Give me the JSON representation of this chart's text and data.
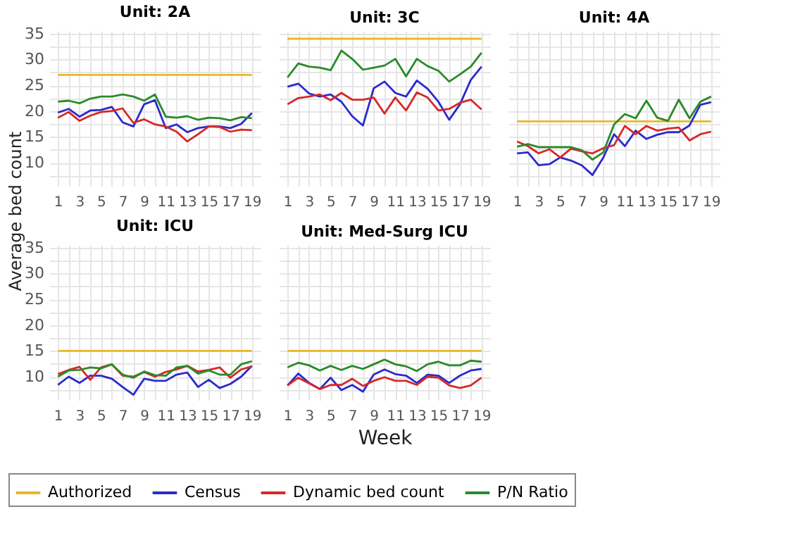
{
  "chart_data": [
    {
      "type": "line",
      "title": "Unit: 2A",
      "ylabel": "Average bed count",
      "legend": "bottom",
      "grid": true,
      "x": [
        1,
        2,
        3,
        4,
        5,
        6,
        7,
        8,
        9,
        10,
        11,
        12,
        13,
        14,
        15,
        16,
        17,
        18,
        19
      ],
      "xlim": [
        0.2,
        19.8
      ],
      "xticks": [
        1,
        {
          "value": 2,
          "label": null
        },
        3,
        {
          "value": 4,
          "label": null
        },
        5,
        {
          "value": 6,
          "label": null
        },
        7,
        {
          "value": 8,
          "label": null
        },
        9,
        {
          "value": 10,
          "label": null
        },
        11,
        {
          "value": 12,
          "label": null
        },
        13,
        {
          "value": 14,
          "label": null
        },
        15,
        {
          "value": 16,
          "label": null
        },
        17,
        {
          "value": 18,
          "label": null
        },
        19
      ],
      "ylim": [
        5.5,
        35.5
      ],
      "yticks": [
        {
          "value": 7.5,
          "label": null
        },
        10,
        {
          "value": 12.5,
          "label": null
        },
        15,
        {
          "value": 17.5,
          "label": null
        },
        20,
        {
          "value": 22.5,
          "label": null
        },
        25,
        {
          "value": 27.5,
          "label": null
        },
        30,
        {
          "value": 32.5,
          "label": null
        },
        35
      ],
      "series": [
        {
          "name": "Authorized",
          "color": "#e8b828",
          "values": [
            27,
            27,
            27,
            27,
            27,
            27,
            27,
            27,
            27,
            27,
            27,
            27,
            27,
            27,
            27,
            27,
            27,
            27,
            27
          ]
        },
        {
          "name": "Census",
          "color": "#2b2bcc",
          "values": [
            19.7,
            20.4,
            18.9,
            20.1,
            20.2,
            20.8,
            17.8,
            17,
            21.3,
            22.1,
            16.7,
            17.4,
            15.9,
            16.7,
            17,
            17,
            16.7,
            17.5,
            19.6
          ]
        },
        {
          "name": "Dynamic bed count",
          "color": "#d62828",
          "values": [
            18.7,
            19.8,
            18.1,
            19.1,
            19.8,
            20,
            20.5,
            17.7,
            18.4,
            17.4,
            17,
            16,
            14.1,
            15.5,
            17,
            16.9,
            16,
            16.4,
            16.3
          ]
        },
        {
          "name": "P/N Ratio",
          "color": "#2a8a2a",
          "values": [
            21.8,
            22,
            21.5,
            22.4,
            22.8,
            22.8,
            23.2,
            22.8,
            22,
            23.2,
            18.9,
            18.7,
            19,
            18.3,
            18.7,
            18.6,
            18.2,
            18.8,
            18.6
          ]
        }
      ]
    },
    {
      "type": "line",
      "title": "Unit: 3C",
      "legend": "bottom",
      "grid": true,
      "tick_labels": "x",
      "x": [
        1,
        2,
        3,
        4,
        5,
        6,
        7,
        8,
        9,
        10,
        11,
        12,
        13,
        14,
        15,
        16,
        17,
        18,
        19
      ],
      "xlim": [
        0.2,
        19.8
      ],
      "xticks": [
        1,
        {
          "value": 2,
          "label": null
        },
        3,
        {
          "value": 4,
          "label": null
        },
        5,
        {
          "value": 6,
          "label": null
        },
        7,
        {
          "value": 8,
          "label": null
        },
        9,
        {
          "value": 10,
          "label": null
        },
        11,
        {
          "value": 12,
          "label": null
        },
        13,
        {
          "value": 14,
          "label": null
        },
        15,
        {
          "value": 16,
          "label": null
        },
        17,
        {
          "value": 18,
          "label": null
        },
        19
      ],
      "ylim": [
        5.5,
        35.5
      ],
      "yticks": [
        {
          "value": 7.5,
          "label": null
        },
        10,
        {
          "value": 12.5,
          "label": null
        },
        15,
        {
          "value": 17.5,
          "label": null
        },
        20,
        {
          "value": 22.5,
          "label": null
        },
        25,
        {
          "value": 27.5,
          "label": null
        },
        30,
        {
          "value": 32.5,
          "label": null
        },
        35
      ],
      "series": [
        {
          "name": "Authorized",
          "color": "#e8b828",
          "values": [
            34,
            34,
            34,
            34,
            34,
            34,
            34,
            34,
            34,
            34,
            34,
            34,
            34,
            34,
            34,
            34,
            34,
            34,
            34
          ]
        },
        {
          "name": "Census",
          "color": "#2b2bcc",
          "values": [
            24.7,
            25.3,
            23.4,
            22.8,
            23.2,
            21.8,
            19,
            17.2,
            24.4,
            25.7,
            23.5,
            22.8,
            25.9,
            24.3,
            21.8,
            18.3,
            21.3,
            26,
            28.6
          ]
        },
        {
          "name": "Dynamic bed count",
          "color": "#d62828",
          "values": [
            21.3,
            22.5,
            22.8,
            23.2,
            22.1,
            23.5,
            22.2,
            22.2,
            22.6,
            19.5,
            22.6,
            20.1,
            23.6,
            22.6,
            20.1,
            20.4,
            21.6,
            22.2,
            20.3
          ]
        },
        {
          "name": "P/N Ratio",
          "color": "#2a8a2a",
          "values": [
            26.5,
            29.2,
            28.6,
            28.4,
            27.9,
            31.7,
            30.1,
            28,
            28.4,
            28.8,
            30.1,
            26.7,
            30.1,
            28.7,
            27.8,
            25.7,
            27.1,
            28.6,
            31.3
          ]
        }
      ]
    },
    {
      "type": "line",
      "title": "Unit: 4A",
      "legend": "bottom",
      "grid": true,
      "tick_labels": "x",
      "x": [
        1,
        2,
        3,
        4,
        5,
        6,
        7,
        8,
        9,
        10,
        11,
        12,
        13,
        14,
        15,
        16,
        17,
        18,
        19
      ],
      "xlim": [
        0.2,
        19.8
      ],
      "xticks": [
        1,
        {
          "value": 2,
          "label": null
        },
        3,
        {
          "value": 4,
          "label": null
        },
        5,
        {
          "value": 6,
          "label": null
        },
        7,
        {
          "value": 8,
          "label": null
        },
        9,
        {
          "value": 10,
          "label": null
        },
        11,
        {
          "value": 12,
          "label": null
        },
        13,
        {
          "value": 14,
          "label": null
        },
        15,
        {
          "value": 16,
          "label": null
        },
        17,
        {
          "value": 18,
          "label": null
        },
        19
      ],
      "ylim": [
        5.5,
        35.5
      ],
      "yticks": [
        {
          "value": 7.5,
          "label": null
        },
        10,
        {
          "value": 12.5,
          "label": null
        },
        15,
        {
          "value": 17.5,
          "label": null
        },
        20,
        {
          "value": 22.5,
          "label": null
        },
        25,
        {
          "value": 27.5,
          "label": null
        },
        30,
        {
          "value": 32.5,
          "label": null
        },
        35
      ],
      "series": [
        {
          "name": "Authorized",
          "color": "#e8b828",
          "values": [
            18,
            18,
            18,
            18,
            18,
            18,
            18,
            18,
            18,
            18,
            18,
            18,
            18,
            18,
            18,
            18,
            18,
            18,
            18
          ]
        },
        {
          "name": "Census",
          "color": "#2b2bcc",
          "values": [
            11.8,
            12,
            9.5,
            9.7,
            11,
            10.4,
            9.5,
            7.6,
            11,
            15.5,
            13.2,
            16.2,
            14.6,
            15.4,
            15.9,
            15.9,
            17.2,
            21.2,
            21.7
          ]
        },
        {
          "name": "Dynamic bed count",
          "color": "#d62828",
          "values": [
            14.1,
            13.2,
            11.8,
            12.6,
            11,
            12.7,
            12.2,
            11.8,
            12.8,
            13.4,
            17.1,
            15.5,
            17.1,
            16.2,
            16.6,
            16.8,
            14.3,
            15.5,
            16
          ]
        },
        {
          "name": "P/N Ratio",
          "color": "#2a8a2a",
          "values": [
            13.1,
            13.6,
            13,
            13,
            13,
            13,
            12.4,
            10.6,
            12,
            17.4,
            19.4,
            18.6,
            22,
            18.7,
            18.1,
            22.2,
            18.6,
            21.8,
            22.8
          ]
        }
      ]
    },
    {
      "type": "line",
      "title": "Unit: ICU",
      "legend": "bottom",
      "grid": true,
      "x": [
        1,
        2,
        3,
        4,
        5,
        6,
        7,
        8,
        9,
        10,
        11,
        12,
        13,
        14,
        15,
        16,
        17,
        18,
        19
      ],
      "xlim": [
        0.2,
        19.8
      ],
      "xticks": [
        1,
        {
          "value": 2,
          "label": null
        },
        3,
        {
          "value": 4,
          "label": null
        },
        5,
        {
          "value": 6,
          "label": null
        },
        7,
        {
          "value": 8,
          "label": null
        },
        9,
        {
          "value": 10,
          "label": null
        },
        11,
        {
          "value": 12,
          "label": null
        },
        13,
        {
          "value": 14,
          "label": null
        },
        15,
        {
          "value": 16,
          "label": null
        },
        17,
        {
          "value": 18,
          "label": null
        },
        19
      ],
      "ylim": [
        5.5,
        35.5
      ],
      "yticks": [
        {
          "value": 7.5,
          "label": null
        },
        10,
        {
          "value": 12.5,
          "label": null
        },
        15,
        {
          "value": 17.5,
          "label": null
        },
        20,
        {
          "value": 22.5,
          "label": null
        },
        25,
        {
          "value": 27.5,
          "label": null
        },
        30,
        {
          "value": 32.5,
          "label": null
        },
        35
      ],
      "series": [
        {
          "name": "Authorized",
          "color": "#e8b828",
          "values": [
            15,
            15,
            15,
            15,
            15,
            15,
            15,
            15,
            15,
            15,
            15,
            15,
            15,
            15,
            15,
            15,
            15,
            15,
            15
          ]
        },
        {
          "name": "Census",
          "color": "#2b2bcc",
          "values": [
            8.4,
            10,
            8.8,
            10.2,
            10.2,
            9.6,
            8,
            6.5,
            9.6,
            9.2,
            9.2,
            10.4,
            10.8,
            8,
            9.4,
            7.8,
            8.6,
            10,
            12.1
          ]
        },
        {
          "name": "Dynamic bed count",
          "color": "#d62828",
          "values": [
            10.5,
            11.3,
            11.9,
            9.4,
            11.8,
            12.4,
            10.2,
            10,
            10.9,
            10,
            10.9,
            11.4,
            12.1,
            11,
            11.3,
            11.8,
            9.8,
            11.4,
            12
          ]
        },
        {
          "name": "P/N Ratio",
          "color": "#2a8a2a",
          "values": [
            10,
            11.2,
            11.3,
            11.8,
            11.6,
            12.4,
            10.4,
            9.8,
            11,
            10.3,
            10.2,
            11.8,
            12.1,
            10.6,
            11.2,
            10.4,
            10.4,
            12.4,
            13
          ]
        }
      ]
    },
    {
      "type": "line",
      "title": "Unit: Med-Surg ICU",
      "xlabel": "Week",
      "legend": "bottom",
      "grid": true,
      "tick_labels": "x",
      "x": [
        1,
        2,
        3,
        4,
        5,
        6,
        7,
        8,
        9,
        10,
        11,
        12,
        13,
        14,
        15,
        16,
        17,
        18,
        19
      ],
      "xlim": [
        0.2,
        19.8
      ],
      "xticks": [
        1,
        {
          "value": 2,
          "label": null
        },
        3,
        {
          "value": 4,
          "label": null
        },
        5,
        {
          "value": 6,
          "label": null
        },
        7,
        {
          "value": 8,
          "label": null
        },
        9,
        {
          "value": 10,
          "label": null
        },
        11,
        {
          "value": 12,
          "label": null
        },
        13,
        {
          "value": 14,
          "label": null
        },
        15,
        {
          "value": 16,
          "label": null
        },
        17,
        {
          "value": 18,
          "label": null
        },
        19
      ],
      "ylim": [
        5.5,
        35.5
      ],
      "yticks": [
        {
          "value": 7.5,
          "label": null
        },
        10,
        {
          "value": 12.5,
          "label": null
        },
        15,
        {
          "value": 17.5,
          "label": null
        },
        20,
        {
          "value": 22.5,
          "label": null
        },
        25,
        {
          "value": 27.5,
          "label": null
        },
        30,
        {
          "value": 32.5,
          "label": null
        },
        35
      ],
      "series": [
        {
          "name": "Authorized",
          "color": "#e8b828",
          "values": [
            15,
            15,
            15,
            15,
            15,
            15,
            15,
            15,
            15,
            15,
            15,
            15,
            15,
            15,
            15,
            15,
            15,
            15,
            15
          ]
        },
        {
          "name": "Census",
          "color": "#2b2bcc",
          "values": [
            8.3,
            10.6,
            8.8,
            7.6,
            9.8,
            7.4,
            8.4,
            7.1,
            10.4,
            11.4,
            10.5,
            10.2,
            8.8,
            10.4,
            10.2,
            8.8,
            10.2,
            11.2,
            11.5
          ]
        },
        {
          "name": "Dynamic bed count",
          "color": "#d62828",
          "values": [
            8.3,
            9.8,
            8.7,
            7.6,
            8.4,
            8.4,
            9.6,
            8.2,
            9.2,
            9.9,
            9.2,
            9.2,
            8.4,
            10,
            9.8,
            8.3,
            7.8,
            8.3,
            9.8
          ]
        },
        {
          "name": "P/N Ratio",
          "color": "#2a8a2a",
          "values": [
            11.8,
            12.7,
            12.2,
            11.2,
            12.1,
            11.3,
            12.1,
            11.5,
            12.4,
            13.3,
            12.4,
            12,
            11.1,
            12.4,
            12.9,
            12.2,
            12.2,
            13.1,
            12.9
          ]
        }
      ]
    }
  ]
}
